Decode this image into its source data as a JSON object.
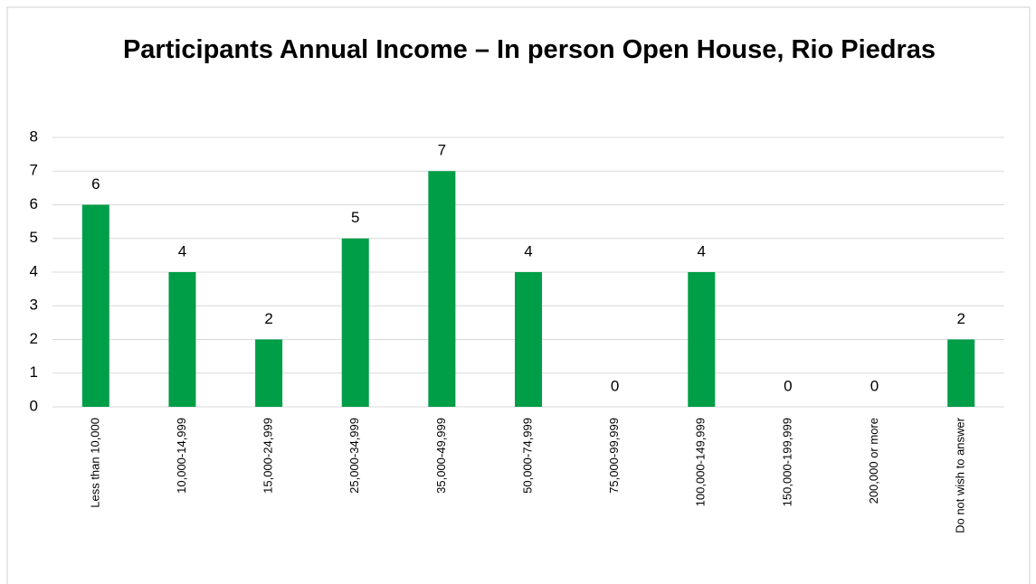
{
  "chart_data": {
    "type": "bar",
    "title": "Participants Annual Income – In person Open House, Rio Piedras",
    "categories": [
      "Less than 10,000",
      "10,000-14,999",
      "15,000-24,999",
      "25,000-34,999",
      "35,000-49,999",
      "50,000-74,999",
      "75,000-99,999",
      "100,000-149,999",
      "150,000-199,999",
      "200,000 or more",
      "Do not wish to answer"
    ],
    "values": [
      6,
      4,
      2,
      5,
      7,
      4,
      0,
      4,
      0,
      0,
      2
    ],
    "color": "#009e47",
    "ylim": [
      0,
      8
    ],
    "yticks": [
      0,
      1,
      2,
      3,
      4,
      5,
      6,
      7,
      8
    ],
    "grid": true
  }
}
